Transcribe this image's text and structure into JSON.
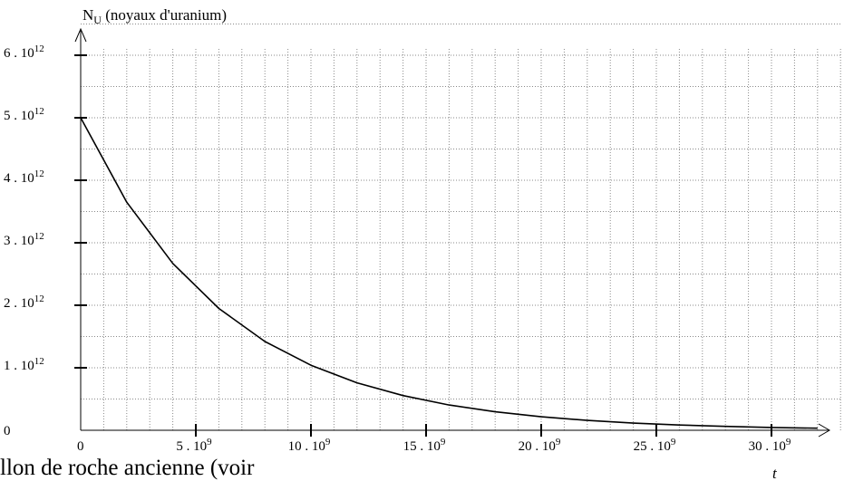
{
  "chart_data": {
    "type": "line",
    "title": "",
    "ylabel": {
      "main": "N",
      "sub": "U",
      "rest": " (noyaux d'uranium)"
    },
    "xlabel": "t",
    "xlim": [
      0,
      33000000000
    ],
    "ylim": [
      0,
      6000000000000
    ],
    "grid": true,
    "x_ticks": [
      {
        "value": 0,
        "mantissa": "0",
        "exp": ""
      },
      {
        "value": 5000000000,
        "mantissa": "5 . 10",
        "exp": "9"
      },
      {
        "value": 10000000000,
        "mantissa": "10 . 10",
        "exp": "9"
      },
      {
        "value": 15000000000,
        "mantissa": "15 . 10",
        "exp": "9"
      },
      {
        "value": 20000000000,
        "mantissa": "20 . 10",
        "exp": "9"
      },
      {
        "value": 25000000000,
        "mantissa": "25 . 10",
        "exp": "9"
      },
      {
        "value": 30000000000,
        "mantissa": "30 . 10",
        "exp": "9"
      }
    ],
    "y_ticks": [
      {
        "value": 0,
        "mantissa": "0",
        "exp": ""
      },
      {
        "value": 1000000000000,
        "mantissa": "1 . 10",
        "exp": "12"
      },
      {
        "value": 2000000000000,
        "mantissa": "2 . 10",
        "exp": "12"
      },
      {
        "value": 3000000000000,
        "mantissa": "3 . 10",
        "exp": "12"
      },
      {
        "value": 4000000000000,
        "mantissa": "4 . 10",
        "exp": "12"
      },
      {
        "value": 5000000000000,
        "mantissa": "5 . 10",
        "exp": "12"
      },
      {
        "value": 6000000000000,
        "mantissa": "6 . 10",
        "exp": "12"
      }
    ],
    "series": [
      {
        "x": [
          0,
          2000000000,
          4000000000,
          6000000000,
          8000000000,
          10000000000,
          12000000000,
          14000000000,
          16000000000,
          18000000000,
          20000000000,
          22000000000,
          24000000000,
          26000000000,
          28000000000,
          30000000000,
          32000000000
        ],
        "y": [
          5000000000000,
          3650000000000,
          2670000000000,
          1950000000000,
          1420000000000,
          1040000000000,
          760000000000,
          555000000000,
          405000000000,
          296000000000,
          216000000000,
          158000000000,
          115000000000,
          84000000000,
          62000000000,
          45000000000,
          33000000000
        ]
      }
    ]
  },
  "caption": "llon de roche ancienne (voir"
}
